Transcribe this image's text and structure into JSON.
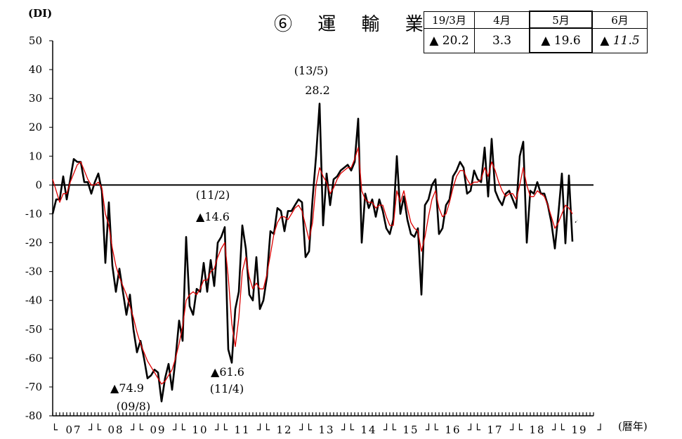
{
  "header": {
    "unit": "(DI)",
    "title": "⑥ 運 輸 業",
    "x_unit": "(暦年)"
  },
  "summary_table": {
    "columns": [
      "19/3月",
      "4月",
      "5月",
      "6月"
    ],
    "values": [
      "▲ 20.2",
      "3.3",
      "▲ 19.6",
      "▲ 11.5"
    ],
    "highlight_column": 2,
    "italic_column": 3
  },
  "annotations": [
    {
      "label": "(13/5)",
      "value": "28.2"
    },
    {
      "label": "(11/2)",
      "value": "▲14.6"
    },
    {
      "label": "(09/8)",
      "value": "▲74.9"
    },
    {
      "label": "(11/4)",
      "value": "▲61.6"
    }
  ],
  "chart_data": {
    "type": "line",
    "title": "⑥ 運 輸 業",
    "ylabel": "(DI)",
    "xlabel": "(暦年)",
    "ylim": [
      -80,
      50
    ],
    "yticks": [
      50,
      40,
      30,
      20,
      10,
      0,
      -10,
      -20,
      -30,
      -40,
      -50,
      -60,
      -70,
      -80
    ],
    "x_start": "2007-01",
    "x_frequency": "monthly",
    "year_labels": [
      "07",
      "08",
      "09",
      "10",
      "11",
      "12",
      "13",
      "14",
      "15",
      "16",
      "17",
      "18",
      "19"
    ],
    "zero_line": true,
    "series": [
      {
        "color": "#000000",
        "values": [
          -10,
          -5,
          -5,
          3,
          -5,
          2,
          9,
          8,
          8,
          1,
          1,
          -3,
          1,
          4,
          -2,
          -27,
          -6,
          -28,
          -37,
          -29,
          -37,
          -45,
          -38,
          -50,
          -58,
          -54,
          -60,
          -67,
          -66,
          -64,
          -65,
          -75,
          -67,
          -62,
          -71,
          -60,
          -47,
          -54,
          -18,
          -42,
          -45,
          -36,
          -37,
          -27,
          -37,
          -26,
          -35,
          -20,
          -18,
          -14.6,
          -57,
          -61.6,
          -43,
          -37,
          -14,
          -22,
          -38,
          -40,
          -25,
          -43,
          -40,
          -32,
          -16,
          -17,
          -8,
          -9,
          -16,
          -9,
          -9,
          -7,
          -5,
          -6,
          -25,
          -23,
          -5,
          10,
          28.2,
          -14,
          4,
          -7,
          2,
          3,
          5,
          6,
          7,
          5,
          8,
          23,
          -20,
          -3,
          -8,
          -5,
          -11,
          -5,
          -9,
          -15,
          -17,
          -12,
          10,
          -10,
          -4,
          -12,
          -17,
          -18,
          -15,
          -38,
          -7,
          -5,
          0,
          2,
          -17,
          -15,
          -7,
          -5,
          3,
          5,
          8,
          6,
          -3,
          -2,
          5,
          2,
          1,
          13,
          -4,
          16,
          -2,
          -5,
          -7,
          -3,
          -2,
          -5,
          -8,
          10,
          15,
          -20,
          -2,
          -3,
          1,
          -3,
          -3,
          -7,
          -13,
          -22,
          -10,
          4,
          -20.2,
          3.3,
          -19.6
        ]
      },
      {
        "color": "#dd0000",
        "values": [
          2,
          -2,
          -6,
          -3,
          -3,
          1,
          4,
          7,
          8,
          5,
          2,
          0,
          0,
          1,
          -1,
          -10,
          -14,
          -22,
          -28,
          -32,
          -35,
          -38,
          -42,
          -46,
          -51,
          -55,
          -58,
          -61,
          -63,
          -65,
          -67,
          -69,
          -68,
          -66,
          -64,
          -60,
          -55,
          -49,
          -40,
          -38,
          -37,
          -38,
          -36,
          -33,
          -33,
          -30,
          -29,
          -25,
          -22,
          -20,
          -32,
          -48,
          -56,
          -46,
          -30,
          -25,
          -32,
          -36,
          -34,
          -36,
          -36,
          -31,
          -24,
          -17,
          -13,
          -11,
          -11,
          -12,
          -10,
          -8,
          -7,
          -9,
          -14,
          -19,
          -13,
          0,
          6,
          3,
          1,
          -3,
          -1,
          2,
          4,
          5,
          6,
          6,
          9,
          13,
          -2,
          -5,
          -6,
          -6,
          -8,
          -7,
          -7,
          -11,
          -14,
          -14,
          -2,
          -6,
          -2,
          -8,
          -13,
          -15,
          -16,
          -23,
          -18,
          -11,
          -5,
          -2,
          -8,
          -11,
          -10,
          -6,
          -1,
          3,
          5,
          5,
          2,
          0,
          1,
          1,
          2,
          6,
          3,
          8,
          5,
          1,
          -2,
          -4,
          -3,
          -3,
          -5,
          0,
          6,
          0,
          -4,
          -4,
          -2,
          -3,
          -4,
          -7,
          -11,
          -15,
          -13,
          -10,
          -7,
          -8,
          -10
        ]
      }
    ],
    "forecast": {
      "from": -13,
      "to": -11.5,
      "style": "dashed"
    }
  }
}
